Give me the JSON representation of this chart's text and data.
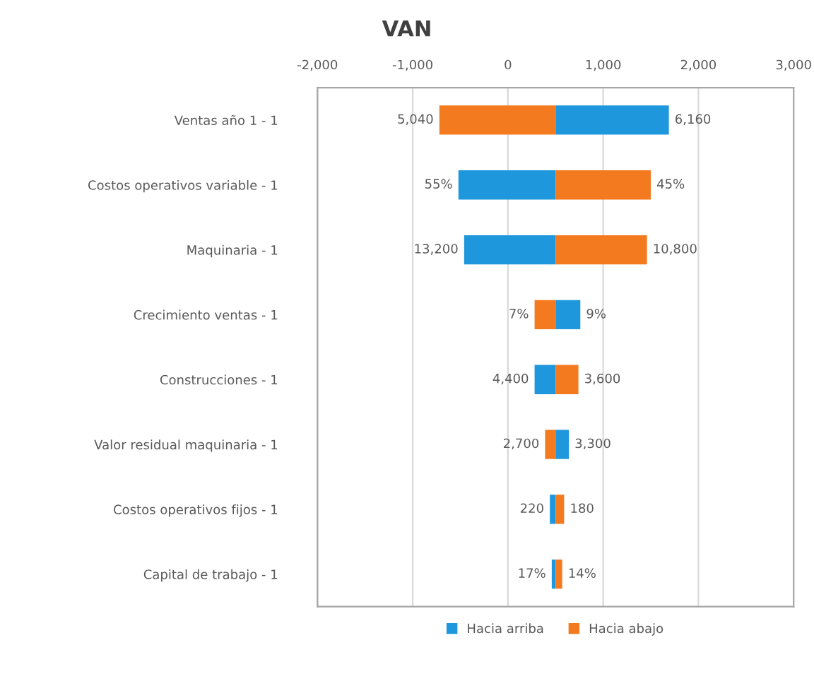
{
  "chart_data": {
    "type": "bar",
    "title": "VAN",
    "orientation": "horizontal",
    "categories": [
      "Ventas año 1 - 1",
      "Costos operativos variable - 1",
      "Maquinaria - 1",
      "Crecimiento ventas - 1",
      "Construcciones - 1",
      "Valor residual maquinaria - 1",
      "Costos operativos fijos - 1",
      "Capital de trabajo - 1"
    ],
    "series": [
      {
        "name": "Hacia arriba",
        "color": "#1f97dc",
        "base": [
          500,
          500,
          500,
          500,
          500,
          500,
          500,
          500
        ],
        "values": [
          1190,
          -1020,
          -960,
          260,
          -220,
          140,
          -60,
          -40
        ]
      },
      {
        "name": "Hacia abajo",
        "color": "#f47a20",
        "base": [
          500,
          500,
          500,
          500,
          500,
          500,
          500,
          500
        ],
        "values": [
          -1220,
          1000,
          960,
          -220,
          240,
          -110,
          90,
          70
        ]
      }
    ],
    "annotations": [
      {
        "text": "6,160",
        "x": 1690,
        "y": "Ventas año 1 - 1"
      },
      {
        "text": "5,040",
        "x": -720,
        "y": "Ventas año 1 - 1"
      },
      {
        "text": "55%",
        "x": -520,
        "y": "Costos operativos variable - 1"
      },
      {
        "text": "45%",
        "x": 1500,
        "y": "Costos operativos variable - 1"
      },
      {
        "text": "13,200",
        "x": -460,
        "y": "Maquinaria - 1"
      },
      {
        "text": "10,800",
        "x": 1460,
        "y": "Maquinaria - 1"
      },
      {
        "text": "9%",
        "x": 760,
        "y": "Crecimiento ventas - 1"
      },
      {
        "text": "7%",
        "x": 280,
        "y": "Crecimiento ventas - 1"
      },
      {
        "text": "4,400",
        "x": 280,
        "y": "Construcciones - 1"
      },
      {
        "text": "3,600",
        "x": 740,
        "y": "Construcciones - 1"
      },
      {
        "text": "3,300",
        "x": 640,
        "y": "Valor residual maquinaria - 1"
      },
      {
        "text": "2,700",
        "x": 390,
        "y": "Valor residual maquinaria - 1"
      },
      {
        "text": "220",
        "x": 440,
        "y": "Costos operativos fijos - 1"
      },
      {
        "text": "180",
        "x": 590,
        "y": "Costos operativos fijos - 1"
      },
      {
        "text": "17%",
        "x": 460,
        "y": "Capital de trabajo - 1"
      },
      {
        "text": "14%",
        "x": 570,
        "y": "Capital de trabajo - 1"
      }
    ],
    "xlim": [
      -2000,
      3000
    ],
    "xticks": [
      {
        "value": -2000,
        "label": "-2,000"
      },
      {
        "value": -1000,
        "label": "-1,000"
      },
      0,
      {
        "value": 1000,
        "label": "1,000"
      },
      {
        "value": 2000,
        "label": "2,000"
      },
      {
        "value": 3000,
        "label": "3,000"
      }
    ],
    "grid": "x",
    "legend": "bottom"
  }
}
